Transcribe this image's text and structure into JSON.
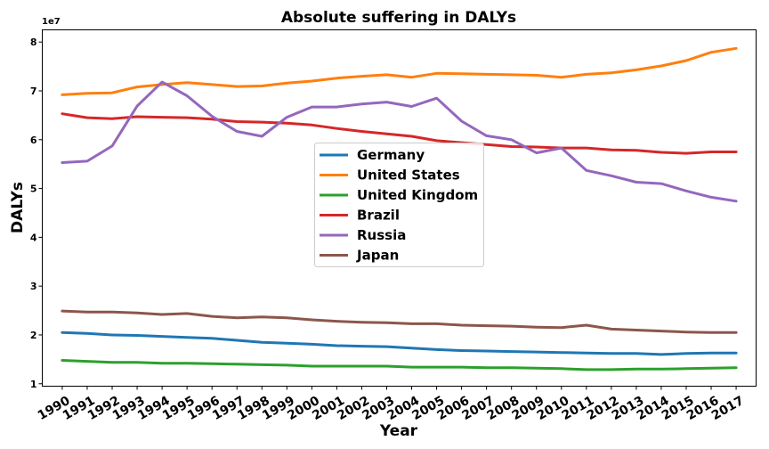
{
  "chart_data": {
    "type": "line",
    "title": "Absolute suffering in DALYs",
    "xlabel": "Year",
    "ylabel": "DALYs",
    "y_offset_label": "1e7",
    "x": [
      1990,
      1991,
      1992,
      1993,
      1994,
      1995,
      1996,
      1997,
      1998,
      1999,
      2000,
      2001,
      2002,
      2003,
      2004,
      2005,
      2006,
      2007,
      2008,
      2009,
      2010,
      2011,
      2012,
      2013,
      2014,
      2015,
      2016,
      2017
    ],
    "xlim": [
      1989.2,
      2017.8
    ],
    "ylim": [
      0.95,
      8.25
    ],
    "y_ticks": [
      1,
      2,
      3,
      4,
      5,
      6,
      7,
      8
    ],
    "grid": false,
    "legend_position": "center",
    "series": [
      {
        "name": "Germany",
        "color": "#1f77b4",
        "values": [
          2.05,
          2.03,
          2.0,
          1.99,
          1.97,
          1.95,
          1.93,
          1.89,
          1.85,
          1.83,
          1.81,
          1.78,
          1.77,
          1.76,
          1.73,
          1.7,
          1.68,
          1.67,
          1.66,
          1.65,
          1.64,
          1.63,
          1.62,
          1.62,
          1.6,
          1.62,
          1.63,
          1.63
        ]
      },
      {
        "name": "United States",
        "color": "#ff7f0e",
        "values": [
          6.92,
          6.95,
          6.96,
          7.08,
          7.13,
          7.17,
          7.13,
          7.09,
          7.1,
          7.16,
          7.2,
          7.26,
          7.3,
          7.33,
          7.28,
          7.36,
          7.35,
          7.34,
          7.33,
          7.32,
          7.28,
          7.34,
          7.37,
          7.43,
          7.51,
          7.62,
          7.79,
          7.87
        ]
      },
      {
        "name": "United Kingdom",
        "color": "#2ca02c",
        "values": [
          1.48,
          1.46,
          1.44,
          1.44,
          1.42,
          1.42,
          1.41,
          1.4,
          1.39,
          1.38,
          1.36,
          1.36,
          1.36,
          1.36,
          1.34,
          1.34,
          1.34,
          1.33,
          1.33,
          1.32,
          1.31,
          1.29,
          1.29,
          1.3,
          1.3,
          1.31,
          1.32,
          1.33
        ]
      },
      {
        "name": "Brazil",
        "color": "#d62728",
        "values": [
          6.53,
          6.45,
          6.43,
          6.47,
          6.46,
          6.45,
          6.42,
          6.37,
          6.36,
          6.34,
          6.3,
          6.23,
          6.17,
          6.12,
          6.07,
          5.98,
          5.94,
          5.9,
          5.86,
          5.85,
          5.83,
          5.83,
          5.79,
          5.78,
          5.74,
          5.72,
          5.75,
          5.75
        ]
      },
      {
        "name": "Russia",
        "color": "#9467bd",
        "values": [
          5.53,
          5.56,
          5.87,
          6.69,
          7.18,
          6.9,
          6.48,
          6.17,
          6.07,
          6.46,
          6.67,
          6.67,
          6.73,
          6.77,
          6.68,
          6.85,
          6.38,
          6.08,
          6.0,
          5.73,
          5.83,
          5.37,
          5.26,
          5.13,
          5.1,
          4.95,
          4.82,
          4.74
        ]
      },
      {
        "name": "Japan",
        "color": "#8c564b",
        "values": [
          2.49,
          2.47,
          2.47,
          2.45,
          2.42,
          2.44,
          2.38,
          2.35,
          2.37,
          2.35,
          2.31,
          2.28,
          2.26,
          2.25,
          2.23,
          2.23,
          2.2,
          2.19,
          2.18,
          2.16,
          2.15,
          2.2,
          2.12,
          2.1,
          2.08,
          2.06,
          2.05,
          2.05
        ]
      }
    ]
  }
}
